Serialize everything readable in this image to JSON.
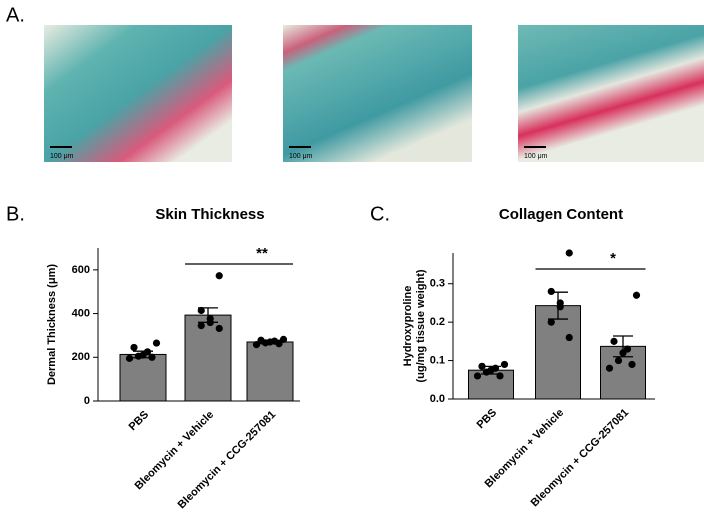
{
  "panels": {
    "a_label": "A.",
    "b_label": "B.",
    "c_label": "C.",
    "scale_bars": [
      "100 μm",
      "100 μm",
      "100 μm"
    ]
  },
  "chart_data": [
    {
      "type": "bar",
      "title": "Skin Thickness",
      "ylabel": "Dermal Thickness (μm)",
      "categories": [
        "PBS",
        "Bleomycin + Vehicle",
        "Bleomycin + CCG-257081"
      ],
      "values": [
        213,
        393,
        270
      ],
      "errors": [
        15,
        33,
        8
      ],
      "points": [
        [
          265,
          245,
          225,
          210,
          205,
          200,
          195
        ],
        [
          573,
          414,
          377,
          359,
          345,
          332
        ],
        [
          282,
          278,
          274,
          270,
          266,
          262,
          258
        ]
      ],
      "color": "#808080",
      "ylim": [
        0,
        700
      ],
      "yticks": [
        0,
        200,
        400,
        600
      ],
      "annotation": "**"
    },
    {
      "type": "bar",
      "title": "Collagen Content",
      "ylabel": [
        "Hydroxyproline",
        "(ug/mg tissue weight)"
      ],
      "categories": [
        "PBS",
        "Bleomycin + Vehicle",
        "Bleomycin + CCG-257081"
      ],
      "values": [
        0.075,
        0.243,
        0.137
      ],
      "errors": [
        0.01,
        0.035,
        0.027
      ],
      "points": [
        [
          0.09,
          0.085,
          0.08,
          0.075,
          0.07,
          0.06,
          0.06
        ],
        [
          0.38,
          0.28,
          0.25,
          0.24,
          0.2,
          0.16
        ],
        [
          0.27,
          0.15,
          0.13,
          0.12,
          0.1,
          0.09,
          0.08
        ]
      ],
      "color": "#808080",
      "ylim": [
        0,
        0.38
      ],
      "yticks": [
        {
          "value": 0,
          "label": "0.0"
        },
        0.1,
        0.2,
        0.3
      ],
      "annotation": "*"
    }
  ]
}
